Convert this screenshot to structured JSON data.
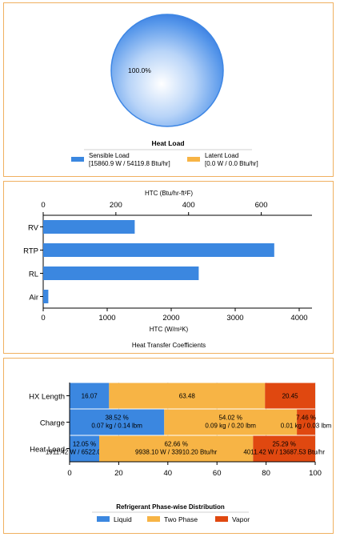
{
  "heat_load": {
    "pie_label": "100.0%",
    "title": "Heat Load",
    "legend": [
      {
        "name": "Sensible Load",
        "detail": "[15860.9 W / 54119.8 Btu/hr]",
        "color": "#3b87e0"
      },
      {
        "name": "Latent  Load",
        "detail": "[0.0 W / 0.0 Btu/hr]",
        "color": "#f7b445"
      }
    ]
  },
  "chart_data": [
    {
      "type": "pie",
      "title": "Heat Load",
      "labels": [
        "Sensible Load",
        "Latent  Load"
      ],
      "values": [
        100.0,
        0.0
      ]
    },
    {
      "type": "bar",
      "orientation": "horizontal",
      "title": "Heat Transfer Coefficients",
      "categories": [
        "RV",
        "RTP",
        "RL",
        "Air"
      ],
      "values": [
        1430,
        3610,
        2430,
        80
      ],
      "xlabel": "HTC (W/m²K)",
      "xlim": [
        0,
        4200
      ],
      "xticks": [
        0,
        1000,
        2000,
        3000,
        4000
      ],
      "x2label": "HTC (Btu/hr-ft²F)",
      "x2lim": [
        0,
        739.66
      ],
      "x2ticks": [
        0,
        200,
        400,
        600
      ],
      "color": "#3b87e0",
      "grid": false
    },
    {
      "type": "bar",
      "orientation": "horizontal",
      "stacked": true,
      "title": "Refrigerant Phase-wise Distribution",
      "categories": [
        "HX Length",
        "Charge",
        "Heat Load"
      ],
      "xlim": [
        0,
        100
      ],
      "xticks": [
        0,
        20,
        40,
        60,
        80,
        100
      ],
      "legend": "bottom",
      "grid": true,
      "series": [
        {
          "name": "Liquid",
          "color": "#3b87e0",
          "values": [
            16.07,
            38.52,
            12.05
          ],
          "labels": [
            [
              "16.07"
            ],
            [
              "38.52 %",
              "0.07 kg / 0.14 lbm"
            ],
            [
              "12.05 %",
              "1911.42 W / 6522.05 Btu/hr"
            ]
          ]
        },
        {
          "name": "Two Phase",
          "color": "#f7b445",
          "values": [
            63.48,
            54.02,
            62.66
          ],
          "labels": [
            [
              "63.48"
            ],
            [
              "54.02 %",
              "0.09 kg / 0.20 lbm"
            ],
            [
              "62.66 %",
              "9938.10 W / 33910.20 Btu/hr"
            ]
          ]
        },
        {
          "name": "Vapor",
          "color": "#e04810",
          "values": [
            20.45,
            7.46,
            25.29
          ],
          "labels": [
            [
              "20.45"
            ],
            [
              "7.46 %",
              "0.01 kg / 0.03 lbm"
            ],
            [
              "25.29 %",
              "4011.42 W / 13687.53 Btu/hr"
            ]
          ]
        }
      ]
    }
  ]
}
